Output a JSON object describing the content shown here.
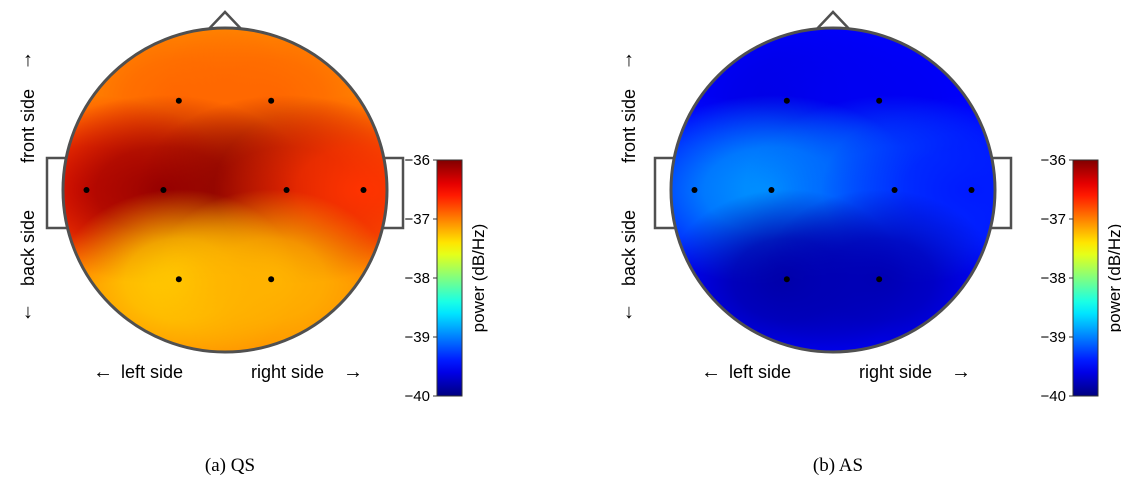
{
  "chart_data": [
    {
      "type": "heatmap",
      "subtype": "topographic-scalp-map",
      "caption": "(a) QS",
      "colorbar": {
        "label": "power (dB/Hz)",
        "range": [
          -40,
          -36
        ],
        "ticks": [
          -36,
          -37,
          -38,
          -39,
          -40
        ],
        "colormap": "jet"
      },
      "orientation_labels": {
        "front": "front side",
        "back": "back side",
        "left": "left side",
        "right": "right side"
      },
      "arrows": {
        "up": "↑",
        "down": "↓",
        "left": "←",
        "right": "→"
      },
      "electrodes": [
        {
          "x": -0.3,
          "y": 0.58,
          "value": -36.9
        },
        {
          "x": 0.3,
          "y": 0.58,
          "value": -36.9
        },
        {
          "x": -0.9,
          "y": 0.0,
          "value": -36.6
        },
        {
          "x": -0.4,
          "y": 0.0,
          "value": -36.1
        },
        {
          "x": 0.4,
          "y": 0.0,
          "value": -36.05
        },
        {
          "x": 0.9,
          "y": 0.0,
          "value": -36.7
        },
        {
          "x": -0.3,
          "y": -0.58,
          "value": -37.3
        },
        {
          "x": 0.3,
          "y": -0.58,
          "value": -37.2
        }
      ],
      "background_value": -37.05
    },
    {
      "type": "heatmap",
      "subtype": "topographic-scalp-map",
      "caption": "(b) AS",
      "colorbar": {
        "label": "power (dB/Hz)",
        "range": [
          -40,
          -36
        ],
        "ticks": [
          -36,
          -37,
          -38,
          -39,
          -40
        ],
        "colormap": "jet"
      },
      "orientation_labels": {
        "front": "front side",
        "back": "back side",
        "left": "left side",
        "right": "right side"
      },
      "arrows": {
        "up": "↑",
        "down": "↓",
        "left": "←",
        "right": "→"
      },
      "electrodes": [
        {
          "x": -0.3,
          "y": 0.58,
          "value": -39.6
        },
        {
          "x": 0.3,
          "y": 0.58,
          "value": -39.55
        },
        {
          "x": -0.9,
          "y": 0.0,
          "value": -39.4
        },
        {
          "x": -0.4,
          "y": 0.0,
          "value": -38.9
        },
        {
          "x": 0.4,
          "y": 0.0,
          "value": -39.1
        },
        {
          "x": 0.9,
          "y": 0.0,
          "value": -39.4
        },
        {
          "x": -0.3,
          "y": -0.58,
          "value": -39.85
        },
        {
          "x": 0.3,
          "y": -0.58,
          "value": -39.8
        }
      ],
      "background_value": -39.5
    }
  ]
}
